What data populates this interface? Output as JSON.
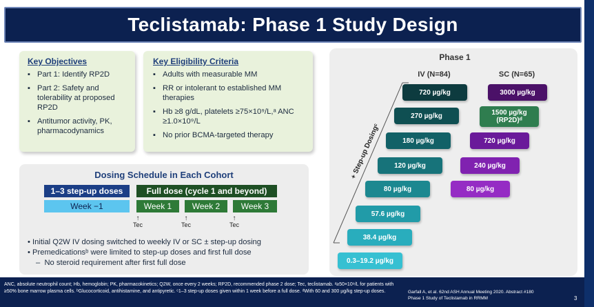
{
  "title": "Teclistamab: Phase 1 Study Design",
  "objectives": {
    "heading": "Key Objectives",
    "items": [
      "Part 1: Identify RP2D",
      "Part 2: Safety and tolerability at proposed RP2D",
      "Antitumor activity, PK, pharmacodynamics"
    ]
  },
  "eligibility": {
    "heading": "Key Eligibility Criteria",
    "items": [
      "Adults with measurable MM",
      "RR or intolerant to established MM therapies",
      "Hb ≥8 g/dL, platelets ≥75×10⁹/L,ᵃ ANC ≥1.0×10⁹/L",
      "No prior BCMA-targeted therapy"
    ]
  },
  "cohort": {
    "heading": "Dosing Schedule in Each Cohort",
    "stepup_label": "1–3 step-up doses",
    "full_label": "Full dose (cycle 1 and beyond)",
    "week_minus1": "Week −1",
    "weeks": [
      "Week 1",
      "Week 2",
      "Week 3"
    ],
    "tec_label": "Tec",
    "notes": [
      "Initial Q2W IV dosing switched to weekly IV or SC ± step-up dosing",
      "Premedicationsᵇ were limited to step-up doses and first full dose"
    ],
    "subnote": "No steroid requirement after first full dose"
  },
  "phase": {
    "title": "Phase 1",
    "iv_header": "IV (N=84)",
    "sc_header": "SC (N=65)",
    "stepup_text": "+ Step-up Dosingᶜ",
    "iv_doses": [
      "720 µg/kg",
      "270 µg/kg",
      "180 µg/kg",
      "120 µg/kg",
      "80 µg/kg",
      "57.6 µg/kg",
      "38.4 µg/kg",
      "0.3–19.2 µg/kg"
    ],
    "sc_doses": [
      "3000 µg/kg",
      "1500 µg/kg",
      "(RP2D)ᵈ",
      "720 µg/kg",
      "240 µg/kg",
      "80 µg/kg"
    ]
  },
  "footer": {
    "footnotes": "ANC, absolute neutrophil count; Hb, hemoglobin; PK, pharmacokinetics; Q2W, once every 2 weeks; RP2D, recommended phase 2 dose; Tec, teclistamab. ᵃ≥50×10⁹/L for patients with ≥50% bone marrow plasma cells. ᵇGlucocorticoid, antihistamine, and antipyretic. ᶜ1–3 step-up doses given within 1 week before a full dose. ᵈWith 60 and 300 µg/kg step-up doses.",
    "citation_line1": "Garfall A, et al. 62nd ASH Annual Meeting 2020. Abstract #180",
    "citation_line2": "Phase 1 Study of Teclistamab in RRMM",
    "page_number": "3"
  },
  "colors": {
    "navy": "#0c2150",
    "panel_green": "#e9f2dc",
    "stepup_blue": "#1b3e86",
    "week_light_blue": "#5cc5ef",
    "week_green": "#2e7a37",
    "full_dark_green": "#1e4f24",
    "sc_purple": "#6a1a9a",
    "sc_green": "#2f7d4f"
  }
}
